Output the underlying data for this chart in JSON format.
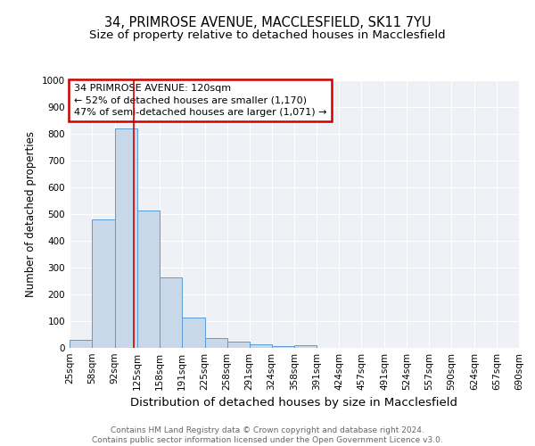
{
  "title1": "34, PRIMROSE AVENUE, MACCLESFIELD, SK11 7YU",
  "title2": "Size of property relative to detached houses in Macclesfield",
  "xlabel": "Distribution of detached houses by size in Macclesfield",
  "ylabel": "Number of detached properties",
  "footnote": "Contains HM Land Registry data © Crown copyright and database right 2024.\nContains public sector information licensed under the Open Government Licence v3.0.",
  "bin_edges": [
    25,
    58,
    92,
    125,
    158,
    191,
    225,
    258,
    291,
    324,
    358,
    391,
    424,
    457,
    491,
    524,
    557,
    590,
    624,
    657,
    690
  ],
  "bar_heights": [
    30,
    480,
    820,
    515,
    265,
    112,
    38,
    22,
    12,
    8,
    10,
    0,
    0,
    0,
    0,
    0,
    0,
    0,
    0,
    0
  ],
  "bar_color": "#c8d8e8",
  "bar_edgecolor": "#5b9bd5",
  "vline_x": 120,
  "vline_color": "#cc0000",
  "annotation_text": "34 PRIMROSE AVENUE: 120sqm\n← 52% of detached houses are smaller (1,170)\n47% of semi-detached houses are larger (1,071) →",
  "annotation_box_color": "#cc0000",
  "annotation_text_color": "#000000",
  "ylim": [
    0,
    1000
  ],
  "yticks": [
    0,
    100,
    200,
    300,
    400,
    500,
    600,
    700,
    800,
    900,
    1000
  ],
  "bg_color": "#eef2f7",
  "grid_color": "#ffffff",
  "title1_fontsize": 10.5,
  "title2_fontsize": 9.5,
  "xlabel_fontsize": 9.5,
  "ylabel_fontsize": 8.5,
  "tick_fontsize": 7.5,
  "footnote_fontsize": 6.5,
  "annot_fontsize": 8.0
}
